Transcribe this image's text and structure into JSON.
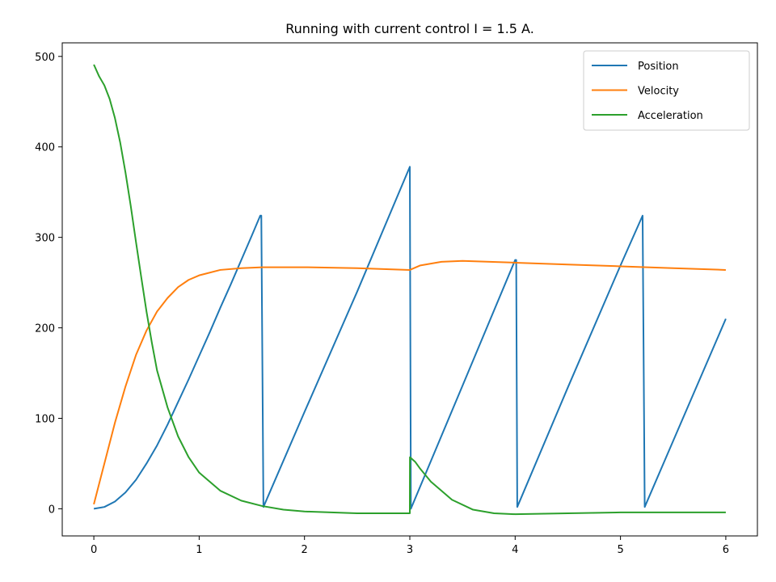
{
  "chart_data": {
    "type": "line",
    "title": "Running with current control I = 1.5 A.",
    "xlabel": "",
    "ylabel": "",
    "xlim": [
      -0.3,
      6.3
    ],
    "ylim": [
      -30,
      515
    ],
    "xticks": [
      0,
      1,
      2,
      3,
      4,
      5,
      6
    ],
    "yticks": [
      0,
      100,
      200,
      300,
      400,
      500
    ],
    "xtick_labels": [
      "0",
      "1",
      "2",
      "3",
      "4",
      "5",
      "6"
    ],
    "ytick_labels": [
      "0",
      "100",
      "200",
      "300",
      "400",
      "500"
    ],
    "legend": {
      "position": "upper right",
      "entries": [
        "Position",
        "Velocity",
        "Acceleration"
      ]
    },
    "grid": false,
    "series": [
      {
        "name": "Position",
        "color": "#1f77b4",
        "points": [
          [
            0,
            0
          ],
          [
            0.1,
            2
          ],
          [
            0.2,
            8
          ],
          [
            0.3,
            18
          ],
          [
            0.4,
            32
          ],
          [
            0.5,
            50
          ],
          [
            0.6,
            70
          ],
          [
            0.7,
            93
          ],
          [
            0.8,
            118
          ],
          [
            0.9,
            143
          ],
          [
            1.0,
            169
          ],
          [
            1.1,
            195
          ],
          [
            1.2,
            222
          ],
          [
            1.3,
            248
          ],
          [
            1.4,
            275
          ],
          [
            1.5,
            302
          ],
          [
            1.58,
            324
          ],
          [
            1.59,
            324
          ],
          [
            1.61,
            2
          ],
          [
            2.0,
            107
          ],
          [
            2.5,
            240
          ],
          [
            3.0,
            378
          ],
          [
            3.01,
            0
          ],
          [
            3.5,
            136
          ],
          [
            4.0,
            275
          ],
          [
            4.01,
            275
          ],
          [
            4.02,
            2
          ],
          [
            4.5,
            134
          ],
          [
            5.0,
            269
          ],
          [
            5.21,
            324
          ],
          [
            5.23,
            2
          ],
          [
            5.5,
            75
          ],
          [
            6.0,
            210
          ]
        ]
      },
      {
        "name": "Velocity",
        "color": "#ff7f0e",
        "points": [
          [
            0,
            5
          ],
          [
            0.1,
            50
          ],
          [
            0.2,
            95
          ],
          [
            0.3,
            135
          ],
          [
            0.4,
            170
          ],
          [
            0.5,
            197
          ],
          [
            0.6,
            218
          ],
          [
            0.7,
            233
          ],
          [
            0.8,
            245
          ],
          [
            0.9,
            253
          ],
          [
            1.0,
            258
          ],
          [
            1.2,
            264
          ],
          [
            1.4,
            266
          ],
          [
            1.6,
            267
          ],
          [
            2.0,
            267
          ],
          [
            2.5,
            266
          ],
          [
            3.0,
            264
          ],
          [
            3.1,
            269
          ],
          [
            3.3,
            273
          ],
          [
            3.5,
            274
          ],
          [
            4.0,
            272
          ],
          [
            4.5,
            270
          ],
          [
            5.0,
            268
          ],
          [
            5.5,
            266
          ],
          [
            6.0,
            264
          ]
        ]
      },
      {
        "name": "Acceleration",
        "color": "#2ca02c",
        "points": [
          [
            0,
            491
          ],
          [
            0.05,
            478
          ],
          [
            0.1,
            468
          ],
          [
            0.15,
            453
          ],
          [
            0.2,
            432
          ],
          [
            0.25,
            405
          ],
          [
            0.3,
            372
          ],
          [
            0.35,
            335
          ],
          [
            0.4,
            295
          ],
          [
            0.45,
            256
          ],
          [
            0.5,
            218
          ],
          [
            0.55,
            184
          ],
          [
            0.6,
            153
          ],
          [
            0.7,
            112
          ],
          [
            0.8,
            80
          ],
          [
            0.9,
            57
          ],
          [
            1.0,
            40
          ],
          [
            1.2,
            20
          ],
          [
            1.4,
            9
          ],
          [
            1.6,
            3
          ],
          [
            1.8,
            -1
          ],
          [
            2.0,
            -3
          ],
          [
            2.5,
            -5
          ],
          [
            3.0,
            -5
          ],
          [
            3.001,
            57
          ],
          [
            3.05,
            52
          ],
          [
            3.1,
            44
          ],
          [
            3.2,
            30
          ],
          [
            3.4,
            10
          ],
          [
            3.6,
            -1
          ],
          [
            3.8,
            -5
          ],
          [
            4.0,
            -6
          ],
          [
            4.5,
            -5
          ],
          [
            5.0,
            -4
          ],
          [
            5.5,
            -4
          ],
          [
            6.0,
            -4
          ]
        ]
      }
    ]
  }
}
